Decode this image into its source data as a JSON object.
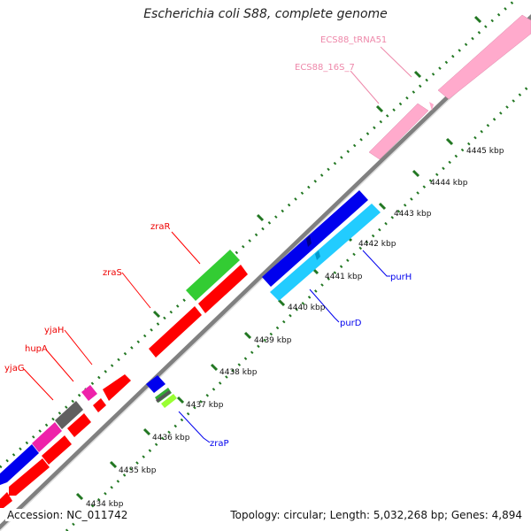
{
  "title": "Escherichia coli S88, complete genome",
  "accession": "Accession: NC_011742",
  "summary": "Topology: circular; Length: 5,032,268 bp; Genes: 4,894",
  "colors": {
    "backbone": "#808080",
    "gene_red": "#ff0000",
    "gene_blue": "#0000ee",
    "gene_cyan": "#22ccff",
    "gene_green": "#33cc33",
    "gene_lightgreen": "#99ff33",
    "gene_magenta": "#ee22aa",
    "gene_gray": "#606060",
    "rna_pink": "#ffaacc",
    "tick_green": "#227722"
  },
  "ticks": [
    "4434 kbp",
    "4435 kbp",
    "4436 kbp",
    "4437 kbp",
    "4438 kbp",
    "4439 kbp",
    "4440 kbp",
    "4441 kbp",
    "4442 kbp",
    "4443 kbp",
    "4444 kbp",
    "4445 kbp"
  ],
  "labels": {
    "ecs88_trna51": "ECS88_tRNA51",
    "ecs88_16s_7": "ECS88_16S_7",
    "zraR": "zraR",
    "zraS": "zraS",
    "yjaH": "yjaH",
    "hupA": "hupA",
    "yjaG": "yjaG",
    "purH": "purH",
    "purD": "purD",
    "zraP": "zraP"
  }
}
